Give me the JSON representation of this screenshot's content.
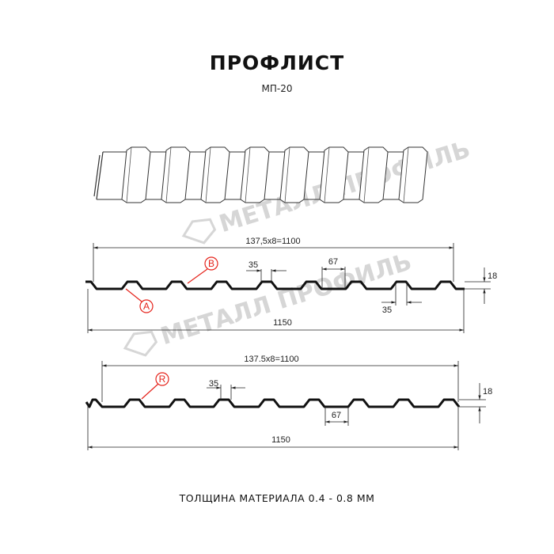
{
  "header": {
    "title": "ПРОФЛИСТ",
    "subtitle": "МП-20"
  },
  "watermark": {
    "text": "МЕТАЛЛ ПРОФИЛЬ"
  },
  "profile_1": {
    "pitch_label": "137,5x8=1100",
    "total_width": "1150",
    "crest_width": "35",
    "pitch_gap": "67",
    "bottom_width": "35",
    "height": "18",
    "marker_a": "A",
    "marker_b": "B"
  },
  "profile_2": {
    "pitch_label": "137.5x8=1100",
    "total_width": "1150",
    "crest_width": "35",
    "pitch_gap": "67",
    "height": "18",
    "marker_r": "R"
  },
  "footer": {
    "thickness": "ТОЛЩИНА МАТЕРИАЛА 0.4 - 0.8 ММ"
  },
  "colors": {
    "profile": "#111111",
    "marker": "#e5231b",
    "watermark": "#d6d6d6"
  }
}
